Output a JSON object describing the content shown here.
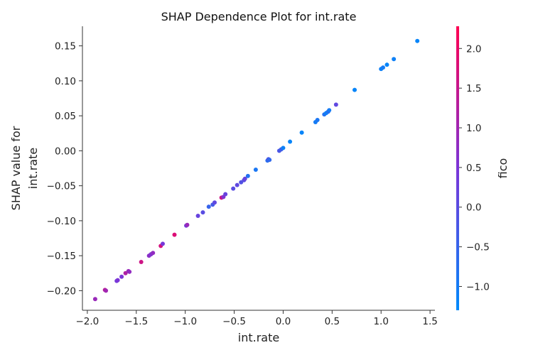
{
  "chart_data": {
    "type": "scatter",
    "title": "SHAP Dependence Plot for int.rate",
    "xlabel": "int.rate",
    "ylabel_lines": [
      "SHAP value for",
      "int.rate"
    ],
    "xlim": [
      -2.05,
      1.55
    ],
    "ylim": [
      -0.228,
      0.178
    ],
    "xticks": [
      -2.0,
      -1.5,
      -1.0,
      -0.5,
      0.0,
      0.5,
      1.0,
      1.5
    ],
    "xtick_labels": [
      "−2.0",
      "−1.5",
      "−1.0",
      "−0.5",
      "0.0",
      "0.5",
      "1.0",
      "1.5"
    ],
    "yticks": [
      0.15,
      0.1,
      0.05,
      0.0,
      -0.05,
      -0.1,
      -0.15,
      -0.2
    ],
    "ytick_labels": [
      "0.15",
      "0.10",
      "0.05",
      "0.00",
      "−0.05",
      "−0.10",
      "−0.15",
      "−0.20"
    ],
    "colorbar": {
      "label": "fico",
      "range": [
        -1.3,
        2.28
      ],
      "ticks": [
        2.0,
        1.5,
        1.0,
        0.5,
        0.0,
        -0.5,
        -1.0
      ],
      "tick_labels": [
        "2.0",
        "1.5",
        "1.0",
        "0.5",
        "0.0",
        "−0.5",
        "−1.0"
      ],
      "colors": {
        "low": "#008afb",
        "mid": "#7b35d8",
        "high": "#ff0052"
      }
    },
    "series": [
      {
        "points": [
          {
            "x": -1.92,
            "y": -0.212,
            "c": 0.9
          },
          {
            "x": -1.82,
            "y": -0.199,
            "c": 1.3
          },
          {
            "x": -1.81,
            "y": -0.2,
            "c": 1.0
          },
          {
            "x": -1.7,
            "y": -0.186,
            "c": 0.4
          },
          {
            "x": -1.69,
            "y": -0.185,
            "c": 0.5
          },
          {
            "x": -1.65,
            "y": -0.18,
            "c": 0.5
          },
          {
            "x": -1.61,
            "y": -0.175,
            "c": 1.2
          },
          {
            "x": -1.58,
            "y": -0.172,
            "c": 0.9
          },
          {
            "x": -1.57,
            "y": -0.173,
            "c": 0.8
          },
          {
            "x": -1.45,
            "y": -0.159,
            "c": 1.6
          },
          {
            "x": -1.37,
            "y": -0.15,
            "c": 0.7
          },
          {
            "x": -1.35,
            "y": -0.148,
            "c": 0.6
          },
          {
            "x": -1.33,
            "y": -0.146,
            "c": 0.8
          },
          {
            "x": -1.25,
            "y": -0.136,
            "c": 1.7
          },
          {
            "x": -1.23,
            "y": -0.133,
            "c": 0.4
          },
          {
            "x": -1.11,
            "y": -0.12,
            "c": 1.8
          },
          {
            "x": -0.99,
            "y": -0.107,
            "c": 0.3
          },
          {
            "x": -0.98,
            "y": -0.106,
            "c": 0.9
          },
          {
            "x": -0.87,
            "y": -0.093,
            "c": 0.2
          },
          {
            "x": -0.82,
            "y": -0.088,
            "c": 0.0
          },
          {
            "x": -0.76,
            "y": -0.08,
            "c": -0.5
          },
          {
            "x": -0.72,
            "y": -0.077,
            "c": -0.3
          },
          {
            "x": -0.7,
            "y": -0.074,
            "c": 0.1
          },
          {
            "x": -0.63,
            "y": -0.067,
            "c": 1.6
          },
          {
            "x": -0.61,
            "y": -0.066,
            "c": 0.6
          },
          {
            "x": -0.59,
            "y": -0.062,
            "c": 0.2
          },
          {
            "x": -0.51,
            "y": -0.054,
            "c": 0.0
          },
          {
            "x": -0.47,
            "y": -0.049,
            "c": 0.1
          },
          {
            "x": -0.43,
            "y": -0.045,
            "c": -0.1
          },
          {
            "x": -0.4,
            "y": -0.042,
            "c": 0.0
          },
          {
            "x": -0.39,
            "y": -0.04,
            "c": 0.2
          },
          {
            "x": -0.36,
            "y": -0.036,
            "c": -0.8
          },
          {
            "x": -0.28,
            "y": -0.027,
            "c": -0.9
          },
          {
            "x": -0.16,
            "y": -0.014,
            "c": -0.7
          },
          {
            "x": -0.15,
            "y": -0.012,
            "c": -0.2
          },
          {
            "x": -0.14,
            "y": -0.013,
            "c": -0.6
          },
          {
            "x": -0.04,
            "y": 0.0,
            "c": -0.2
          },
          {
            "x": -0.02,
            "y": 0.002,
            "c": -0.4
          },
          {
            "x": 0.0,
            "y": 0.004,
            "c": -1.1
          },
          {
            "x": 0.07,
            "y": 0.013,
            "c": -1.2
          },
          {
            "x": 0.19,
            "y": 0.026,
            "c": -1.2
          },
          {
            "x": 0.33,
            "y": 0.041,
            "c": -1.0
          },
          {
            "x": 0.35,
            "y": 0.044,
            "c": -0.9
          },
          {
            "x": 0.42,
            "y": 0.052,
            "c": -0.8
          },
          {
            "x": 0.44,
            "y": 0.054,
            "c": -1.1
          },
          {
            "x": 0.46,
            "y": 0.056,
            "c": -0.7
          },
          {
            "x": 0.47,
            "y": 0.058,
            "c": -1.0
          },
          {
            "x": 0.54,
            "y": 0.066,
            "c": 0.1
          },
          {
            "x": 0.73,
            "y": 0.087,
            "c": -1.2
          },
          {
            "x": 1.0,
            "y": 0.117,
            "c": -1.1
          },
          {
            "x": 1.02,
            "y": 0.119,
            "c": -1.0
          },
          {
            "x": 1.06,
            "y": 0.123,
            "c": -1.2
          },
          {
            "x": 1.13,
            "y": 0.131,
            "c": -1.1
          },
          {
            "x": 1.37,
            "y": 0.157,
            "c": -1.2
          }
        ]
      }
    ]
  }
}
